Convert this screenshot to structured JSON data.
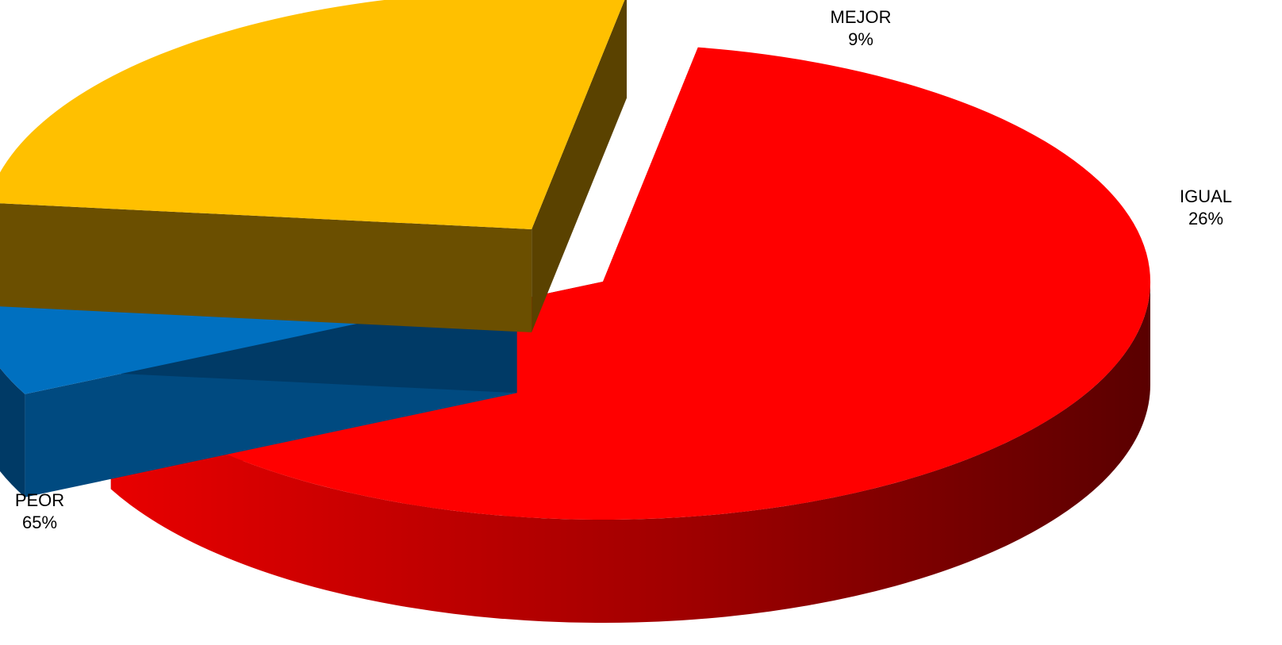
{
  "chart_data": {
    "type": "pie",
    "style": "3d-exploded",
    "title": "",
    "slices": [
      {
        "name": "PEOR",
        "label": "65%",
        "value": 65,
        "color": "#ff0000",
        "side_color": "#cc0000",
        "dark_color": "#5a0000"
      },
      {
        "name": "MEJOR",
        "label": "9%",
        "value": 9,
        "color": "#0070c0",
        "side_color": "#004a80",
        "dark_color": "#003a66"
      },
      {
        "name": "IGUAL",
        "label": "26%",
        "value": 26,
        "color": "#ffc000",
        "side_color": "#6b4f00",
        "dark_color": "#5a4200"
      }
    ]
  }
}
